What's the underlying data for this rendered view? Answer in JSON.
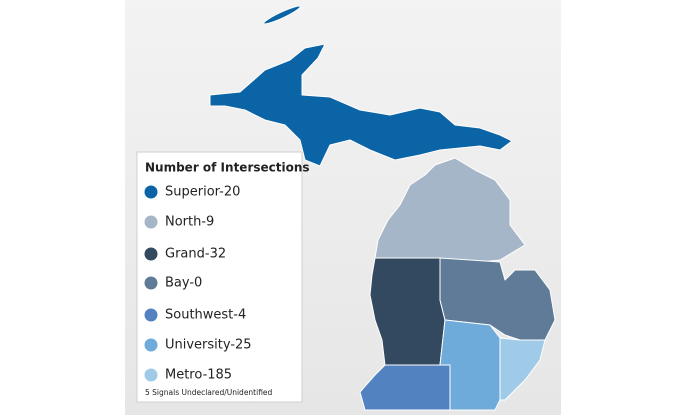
{
  "legend": {
    "title": "Number of Intersections",
    "items": [
      {
        "label": "Superior-20",
        "color": "#0b64a5"
      },
      {
        "label": "North-9",
        "color": "#a4b6c8"
      },
      {
        "label": "Grand-32",
        "color": "#33495f"
      },
      {
        "label": "Bay-0",
        "color": "#5f7b97"
      },
      {
        "label": "Southwest-4",
        "color": "#5382c0"
      },
      {
        "label": "University-25",
        "color": "#6eaada"
      },
      {
        "label": "Metro-185",
        "color": "#a0cbe8"
      }
    ],
    "note": "5 Signals Undeclared/Unidentified"
  }
}
